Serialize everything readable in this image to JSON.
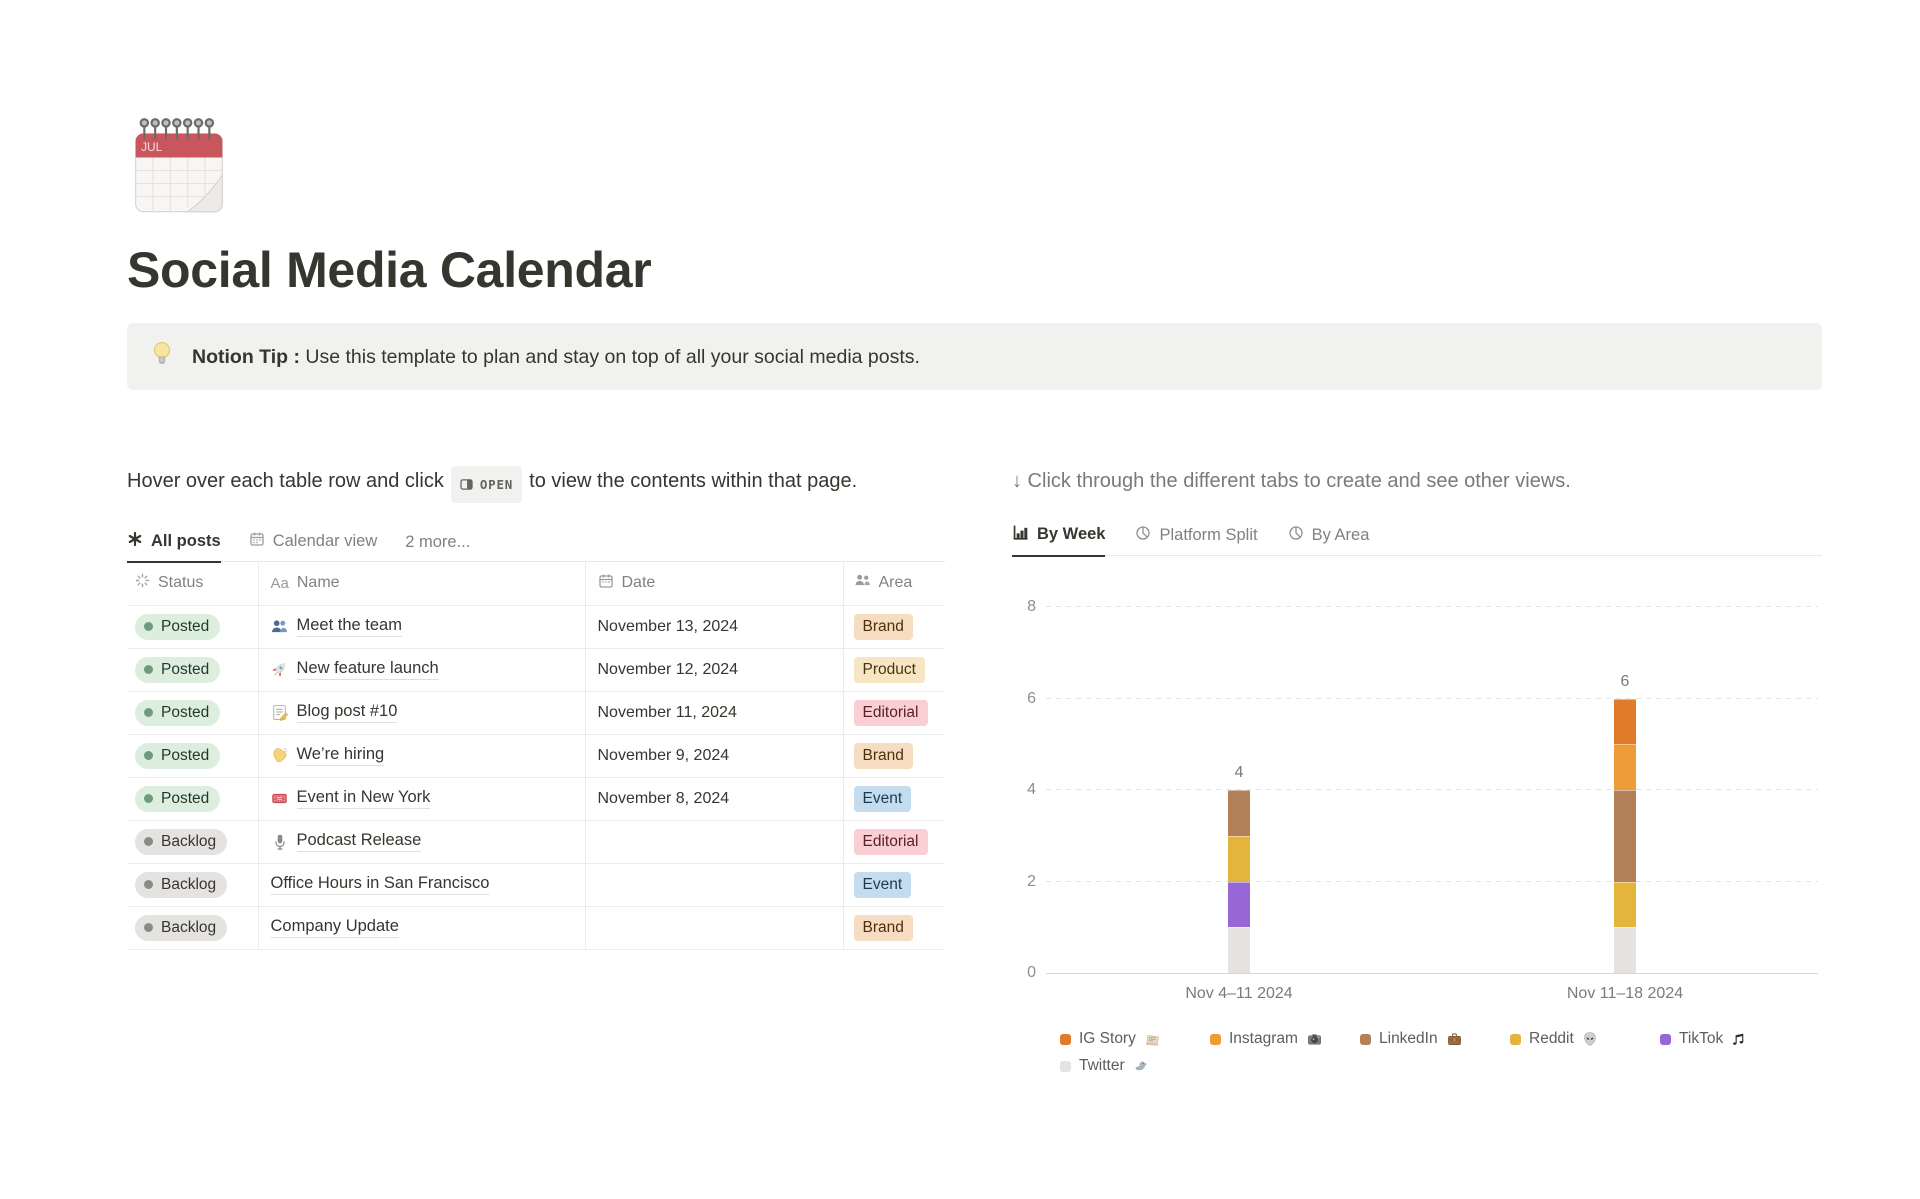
{
  "page": {
    "icon_emoji": "🗓",
    "title": "Social Media Calendar",
    "callout": {
      "icon_emoji": "💡",
      "bold": "Notion Tip :",
      "text": "Use this template to plan and stay on top of all your social media posts."
    }
  },
  "left": {
    "instruction_before": "Hover over each table row and click",
    "open_label": "OPEN",
    "instruction_after": "to view the contents within that page.",
    "tabs": [
      {
        "label": "All posts"
      },
      {
        "label": "Calendar view"
      },
      {
        "label": "2 more..."
      }
    ],
    "table": {
      "name_icon_text": "Aa",
      "columns": [
        "Status",
        "Name",
        "Date",
        "Area"
      ],
      "rows": [
        {
          "status": "Posted",
          "emoji": "👥",
          "name": "Meet the team",
          "date": "November 13, 2024",
          "area": "Brand"
        },
        {
          "status": "Posted",
          "emoji": "🚀",
          "name": "New feature launch",
          "date": "November 12, 2024",
          "area": "Product"
        },
        {
          "status": "Posted",
          "emoji": "📝",
          "name": "Blog post #10",
          "date": "November 11, 2024",
          "area": "Editorial"
        },
        {
          "status": "Posted",
          "emoji": "👋",
          "name": "We’re hiring",
          "date": "November 9, 2024",
          "area": "Brand"
        },
        {
          "status": "Posted",
          "emoji": "🎟",
          "name": "Event in New York",
          "date": "November 8, 2024",
          "area": "Event"
        },
        {
          "status": "Backlog",
          "emoji": "🎙",
          "name": "Podcast Release",
          "date": "",
          "area": "Editorial"
        },
        {
          "status": "Backlog",
          "emoji": "",
          "name": "Office Hours in San Francisco",
          "date": "",
          "area": "Event"
        },
        {
          "status": "Backlog",
          "emoji": "",
          "name": "Company Update",
          "date": "",
          "area": "Brand"
        }
      ],
      "status_styles": {
        "Posted": {
          "bg": "#DEEEDE",
          "dot": "#6C9B7D",
          "text": "#1F3829"
        },
        "Backlog": {
          "bg": "#E4E3E1",
          "dot": "#8A8A87",
          "text": "#37352F"
        }
      },
      "area_styles": {
        "Brand": {
          "bg": "#F6DCC0",
          "text": "#4E3009"
        },
        "Product": {
          "bg": "#F7E6C4",
          "text": "#47360C"
        },
        "Editorial": {
          "bg": "#F9CFD4",
          "text": "#5C2027"
        },
        "Event": {
          "bg": "#C4DCED",
          "text": "#1B3B52"
        }
      }
    }
  },
  "right": {
    "instruction": "↓ Click through the different tabs to create and see other views.",
    "tabs": [
      {
        "label": "By Week"
      },
      {
        "label": "Platform Split"
      },
      {
        "label": "By Area"
      }
    ]
  },
  "chart_data": {
    "type": "bar",
    "stacked": true,
    "title": "By Week",
    "categories": [
      "Nov 4–11 2024",
      "Nov 11–18 2024"
    ],
    "series": [
      {
        "name": "IG Story",
        "emoji": "📰",
        "color": "#E07B2A",
        "values": [
          0,
          1
        ]
      },
      {
        "name": "Instagram",
        "emoji": "📷",
        "color": "#EE9B3A",
        "values": [
          0,
          1
        ]
      },
      {
        "name": "LinkedIn",
        "emoji": "💼",
        "color": "#B28159",
        "values": [
          1,
          2
        ]
      },
      {
        "name": "Reddit",
        "emoji": "👽",
        "color": "#E5B43B",
        "values": [
          1,
          1
        ]
      },
      {
        "name": "TikTok",
        "emoji": "🎵",
        "color": "#9767D8",
        "values": [
          1,
          0
        ]
      },
      {
        "name": "Twitter",
        "emoji": "🐦",
        "color": "#E4E3E1",
        "values": [
          1,
          1
        ]
      }
    ],
    "stack_order_bottom_to_top": [
      "Twitter",
      "TikTok",
      "Reddit",
      "LinkedIn",
      "Instagram",
      "IG Story"
    ],
    "totals": [
      4,
      6
    ],
    "ylim": [
      0,
      8
    ],
    "yticks": [
      0,
      2,
      4,
      6,
      8
    ],
    "grid": "horizontal-dashed",
    "legend_position": "bottom"
  }
}
